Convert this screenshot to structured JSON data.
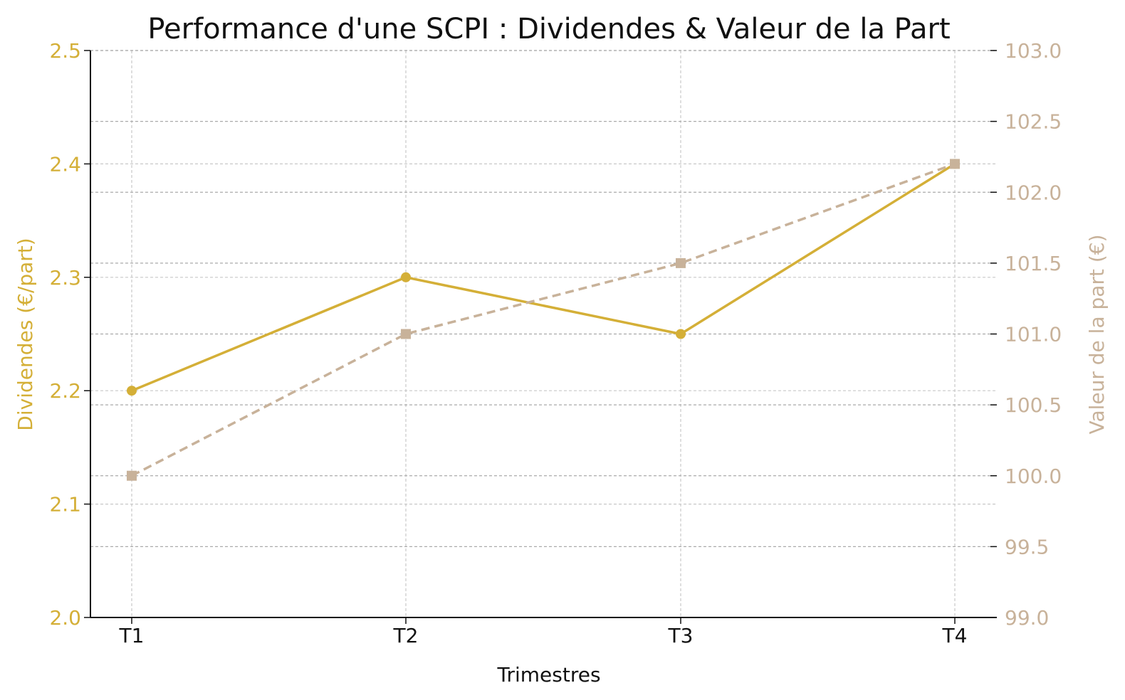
{
  "chart_data": {
    "type": "line",
    "title": "Performance d'une SCPI : Dividendes & Valeur de la Part",
    "xlabel": "Trimestres",
    "ylabel": "Dividendes (€/part)",
    "y2label": "Valeur de la part (€)",
    "categories": [
      "T1",
      "T2",
      "T3",
      "T4"
    ],
    "ylim": [
      2.0,
      2.5
    ],
    "y2lim": [
      99.0,
      103.0
    ],
    "yticks": [
      "2.0",
      "2.1",
      "2.2",
      "2.3",
      "2.4",
      "2.5"
    ],
    "y2ticks": [
      "99.0",
      "99.5",
      "100.0",
      "100.5",
      "101.0",
      "101.5",
      "102.0",
      "102.5",
      "103.0"
    ],
    "grid": true,
    "series": [
      {
        "values": [
          2.2,
          2.3,
          2.25,
          2.4
        ],
        "axis": "left",
        "color": "#D4AF37",
        "style": "solid",
        "marker": "circle"
      },
      {
        "values": [
          100.0,
          101.0,
          101.5,
          102.2
        ],
        "axis": "right",
        "color": "#C8B29A",
        "style": "dashed",
        "marker": "square"
      }
    ]
  }
}
